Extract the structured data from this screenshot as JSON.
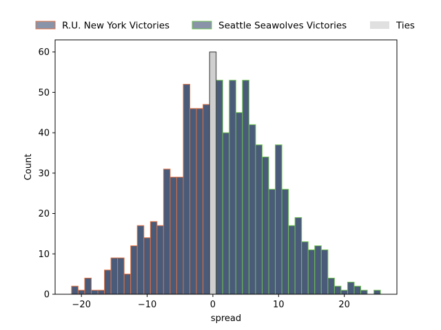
{
  "chart_data": {
    "type": "bar",
    "xlabel": "spread",
    "ylabel": "Count",
    "xlim": [
      -24,
      28
    ],
    "ylim": [
      0,
      63
    ],
    "x_ticks": [
      -20,
      -10,
      0,
      10,
      20
    ],
    "y_ticks": [
      0,
      10,
      20,
      30,
      40,
      50,
      60
    ],
    "x_tick_labels": [
      "−20",
      "−10",
      "0",
      "10",
      "20"
    ],
    "y_tick_labels": [
      "0",
      "10",
      "20",
      "30",
      "40",
      "50",
      "60"
    ],
    "bin_width": 1,
    "grid": false,
    "legend_position": "top",
    "series": [
      {
        "name": "R.U. New York Victories",
        "fill": "#4a5b7a",
        "edge": "#e07040",
        "x": [
          -21,
          -20,
          -19,
          -18,
          -17,
          -16,
          -15,
          -14,
          -13,
          -12,
          -11,
          -10,
          -9,
          -8,
          -7,
          -6,
          -5,
          -4,
          -3,
          -2,
          -1
        ],
        "values": [
          2,
          1,
          4,
          1,
          1,
          6,
          9,
          9,
          5,
          12,
          17,
          14,
          18,
          17,
          31,
          29,
          29,
          52,
          46,
          46,
          47
        ]
      },
      {
        "name": "Seattle Seawolves Victories",
        "fill": "#4a5b7a",
        "edge": "#6dc050",
        "x": [
          1,
          2,
          3,
          4,
          5,
          6,
          7,
          8,
          9,
          10,
          11,
          12,
          13,
          14,
          15,
          16,
          17,
          18,
          19,
          20,
          21,
          22,
          23,
          24,
          25
        ],
        "values": [
          53,
          40,
          53,
          45,
          53,
          42,
          37,
          34,
          26,
          37,
          26,
          17,
          19,
          13,
          11,
          12,
          11,
          4,
          2,
          1,
          3,
          2,
          1,
          0,
          1
        ]
      },
      {
        "name": "Ties",
        "fill": "#cfcfcf",
        "edge": "#333333",
        "x": [
          0
        ],
        "values": [
          60
        ]
      }
    ]
  }
}
